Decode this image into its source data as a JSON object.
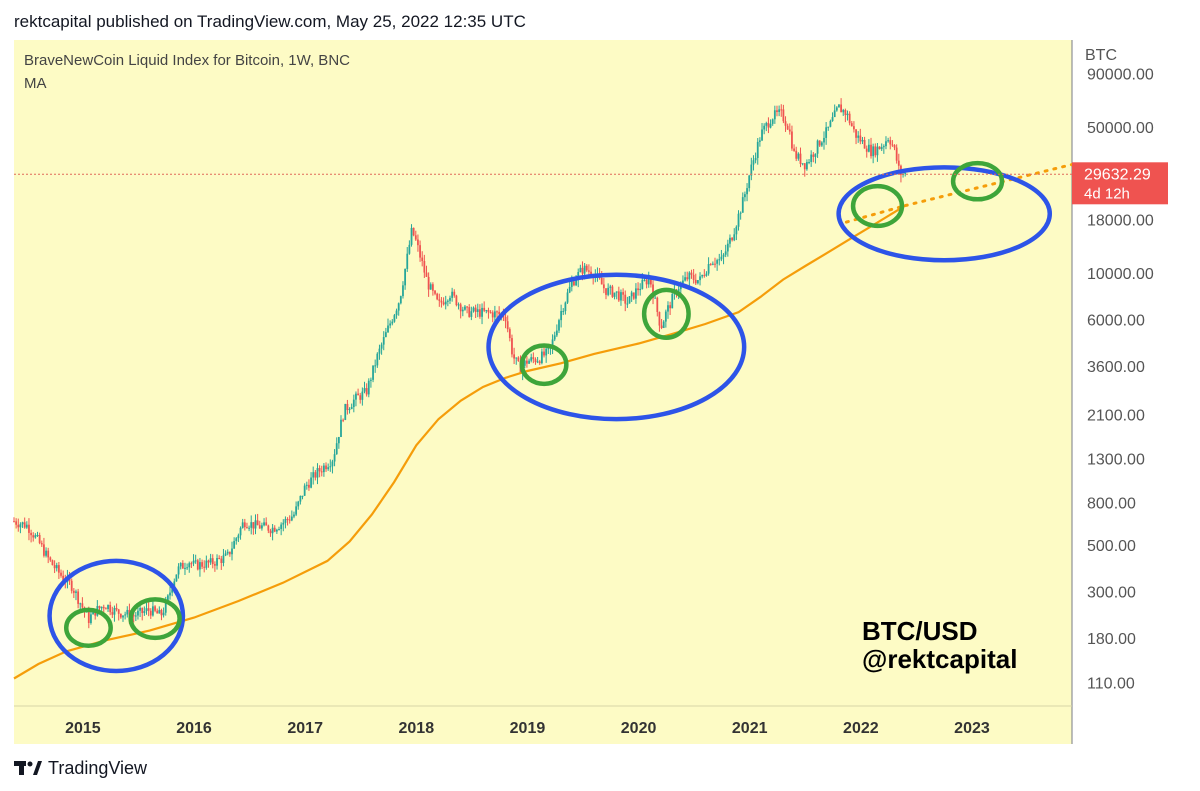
{
  "header": {
    "published": "rektcapital published on TradingView.com, May 25, 2022 12:35 UTC"
  },
  "footer": {
    "brand": "TradingView"
  },
  "colors": {
    "background": "#fdfbc5",
    "up": "#26a69a",
    "down": "#ef5350",
    "ma": "#f59d0a",
    "circle_blue": "#2d54e8",
    "circle_green": "#3ea53a",
    "price_line": "#e06a5a",
    "price_tag": "#ef5350"
  },
  "chart_data": {
    "type": "line",
    "title": "BraveNewCoin Liquid Index for Bitcoin, 1W, BNC",
    "indicator_label": "MA",
    "currency_label": "BTC",
    "y_scale": "log",
    "ylim": [
      85,
      130000
    ],
    "xlim": [
      2014.38,
      2023.9
    ],
    "y_ticks": [
      "90000.00",
      "50000.00",
      "29632.29",
      "18000.00",
      "10000.00",
      "6000.00",
      "3600.00",
      "2100.00",
      "1300.00",
      "800.00",
      "500.00",
      "300.00",
      "180.00",
      "110.00"
    ],
    "x_ticks": [
      "2015",
      "2016",
      "2017",
      "2018",
      "2019",
      "2020",
      "2021",
      "2022",
      "2023"
    ],
    "current_price": {
      "value": 29632.29,
      "label": "29632.29",
      "countdown": "4d 12h"
    },
    "series": [
      {
        "kind": "price",
        "x": [
          2014.38,
          2014.5,
          2014.6,
          2014.7,
          2014.8,
          2014.9,
          2015.0,
          2015.05,
          2015.1,
          2015.2,
          2015.3,
          2015.45,
          2015.6,
          2015.7,
          2015.75,
          2015.8,
          2015.85,
          2015.95,
          2016.0,
          2016.15,
          2016.3,
          2016.45,
          2016.55,
          2016.7,
          2016.8,
          2016.9,
          2017.0,
          2017.1,
          2017.25,
          2017.35,
          2017.45,
          2017.55,
          2017.65,
          2017.75,
          2017.85,
          2017.92,
          2017.96,
          2018.0,
          2018.1,
          2018.2,
          2018.3,
          2018.45,
          2018.55,
          2018.7,
          2018.8,
          2018.87,
          2018.93,
          2019.0,
          2019.1,
          2019.2,
          2019.3,
          2019.4,
          2019.5,
          2019.6,
          2019.7,
          2019.8,
          2019.9,
          2020.0,
          2020.1,
          2020.2,
          2020.25,
          2020.35,
          2020.45,
          2020.55,
          2020.65,
          2020.75,
          2020.85,
          2020.95,
          2021.0,
          2021.1,
          2021.2,
          2021.28,
          2021.35,
          2021.4,
          2021.5,
          2021.55,
          2021.65,
          2021.7,
          2021.8,
          2021.87,
          2021.95,
          2022.0,
          2022.1,
          2022.2,
          2022.25,
          2022.3,
          2022.35,
          2022.4
        ],
        "y": [
          650,
          620,
          520,
          420,
          360,
          320,
          250,
          220,
          240,
          260,
          240,
          230,
          245,
          230,
          260,
          320,
          380,
          420,
          400,
          410,
          440,
          650,
          620,
          600,
          640,
          700,
          950,
          1100,
          1300,
          2200,
          2500,
          2700,
          4000,
          5500,
          7500,
          12000,
          16000,
          14000,
          9000,
          7000,
          8000,
          6500,
          6500,
          6400,
          6300,
          4000,
          3500,
          3800,
          3900,
          4200,
          6500,
          9000,
          10500,
          10000,
          8300,
          8000,
          7200,
          8500,
          9500,
          5500,
          6500,
          8500,
          9600,
          9200,
          11500,
          11500,
          15500,
          23000,
          30000,
          46000,
          56000,
          58000,
          50000,
          37000,
          33000,
          36000,
          44000,
          48000,
          62000,
          58000,
          46000,
          43000,
          38000,
          41000,
          45000,
          39000,
          30000,
          29632
        ]
      },
      {
        "kind": "ma",
        "x": [
          2014.38,
          2014.6,
          2014.85,
          2015.2,
          2015.6,
          2016.0,
          2016.4,
          2016.8,
          2017.2,
          2017.4,
          2017.6,
          2017.8,
          2018.0,
          2018.2,
          2018.4,
          2018.6,
          2018.8,
          2019.0,
          2019.3,
          2019.6,
          2020.0,
          2020.3,
          2020.6,
          2020.9,
          2021.1,
          2021.3,
          2021.5,
          2021.7,
          2021.9,
          2022.1,
          2022.3,
          2022.4
        ],
        "y": [
          115,
          135,
          155,
          175,
          195,
          225,
          270,
          330,
          420,
          520,
          700,
          1000,
          1500,
          2000,
          2450,
          2850,
          3150,
          3400,
          3700,
          4100,
          4600,
          5100,
          5700,
          6500,
          7700,
          9300,
          10800,
          12500,
          14500,
          16800,
          19500,
          21000
        ]
      },
      {
        "kind": "projection",
        "x": [
          2022.4,
          2023.9
        ],
        "y": [
          21000,
          33000
        ]
      },
      {
        "kind": "projection",
        "x": [
          2021.87,
          2022.4
        ],
        "y": [
          17500,
          21000
        ]
      }
    ],
    "annotations": {
      "watermark_line1": "BTC/USD",
      "watermark_line2": "@rektcapital",
      "blue_circles": [
        {
          "cx": 2015.3,
          "cy": 215,
          "rx": 0.6,
          "ry_lo": 125,
          "ry_hi": 420
        },
        {
          "cx": 2019.8,
          "cy": 4500,
          "rx": 1.15,
          "ry_lo": 2000,
          "ry_hi": 9800
        },
        {
          "cx": 2022.75,
          "cy": 23000,
          "rx": 0.95,
          "ry_lo": 11500,
          "ry_hi": 32000
        }
      ],
      "green_circles": [
        {
          "cx": 2015.05,
          "cy": 205,
          "rx": 0.2,
          "ry_lo": 165,
          "ry_hi": 245
        },
        {
          "cx": 2015.65,
          "cy": 225,
          "rx": 0.22,
          "ry_lo": 180,
          "ry_hi": 275
        },
        {
          "cx": 2019.15,
          "cy": 3650,
          "rx": 0.2,
          "ry_lo": 2950,
          "ry_hi": 4500
        },
        {
          "cx": 2020.25,
          "cy": 6300,
          "rx": 0.2,
          "ry_lo": 4900,
          "ry_hi": 8300
        },
        {
          "cx": 2022.15,
          "cy": 20500,
          "rx": 0.22,
          "ry_lo": 16800,
          "ry_hi": 26000
        },
        {
          "cx": 2023.05,
          "cy": 28000,
          "rx": 0.22,
          "ry_lo": 22500,
          "ry_hi": 33500
        }
      ]
    }
  }
}
